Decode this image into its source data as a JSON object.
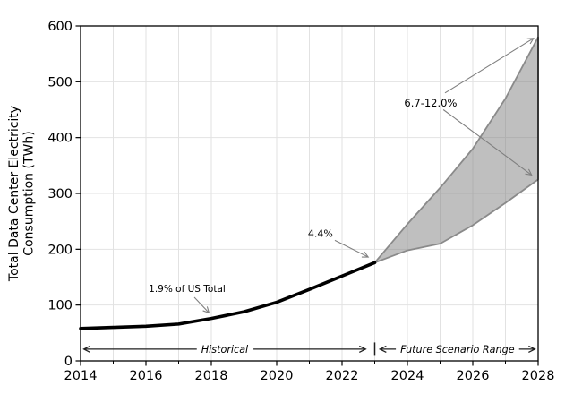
{
  "chart_data": {
    "type": "line",
    "title": "",
    "xlabel": "",
    "ylabel": "Total Data Center Electricity\nConsumption (TWh)",
    "xlim": [
      2014,
      2028
    ],
    "ylim": [
      0,
      600
    ],
    "x_major_ticks": [
      2014,
      2016,
      2018,
      2020,
      2022,
      2024,
      2026,
      2028
    ],
    "x_minor_ticks": [
      2015,
      2017,
      2019,
      2021,
      2023,
      2025,
      2027
    ],
    "y_ticks": [
      0,
      100,
      200,
      300,
      400,
      500,
      600
    ],
    "grid": true,
    "legend": "none",
    "series": [
      {
        "name": "Historical",
        "type": "line",
        "x": [
          2014,
          2015,
          2016,
          2017,
          2018,
          2019,
          2020,
          2021,
          2022,
          2023
        ],
        "y": [
          58,
          60,
          62,
          66,
          76,
          88,
          105,
          128,
          152,
          176
        ]
      },
      {
        "name": "Future Scenario Range",
        "type": "band",
        "x": [
          2023,
          2024,
          2025,
          2026,
          2027,
          2028
        ],
        "lower": [
          176,
          198,
          210,
          243,
          283,
          325
        ],
        "upper": [
          176,
          245,
          310,
          380,
          470,
          580
        ]
      }
    ],
    "annotations": [
      {
        "id": "pct-us-2018",
        "text": "1.9% of US Total",
        "text_x": 2017.26,
        "text_y": 130,
        "arrows": [
          {
            "from": [
              2017.48,
              114
            ],
            "to": [
              2017.93,
              86
            ]
          }
        ]
      },
      {
        "id": "pct-us-2023",
        "text": "4.4%",
        "text_x": 2021.34,
        "text_y": 229,
        "arrows": [
          {
            "from": [
              2021.78,
              216
            ],
            "to": [
              2022.8,
              186
            ]
          }
        ]
      },
      {
        "id": "pct-us-2028",
        "text": "6.7-12.0%",
        "text_x": 2024.71,
        "text_y": 462,
        "arrows": [
          {
            "from": [
              2025.15,
              480
            ],
            "to": [
              2027.86,
              578
            ]
          },
          {
            "from": [
              2025.1,
              450
            ],
            "to": [
              2027.8,
              333
            ]
          }
        ]
      }
    ],
    "span_labels": [
      {
        "label": "Historical",
        "from_x": 2014.1,
        "to_x": 2022.72,
        "y": 21
      },
      {
        "label": "Future Scenario Range",
        "from_x": 2023.16,
        "to_x": 2027.9,
        "y": 21
      }
    ],
    "span_divider_x": 2023,
    "colors": {
      "line": "#000000",
      "band_fill": "#808080",
      "band_opacity": 0.5,
      "band_edge": "#8a8a8a",
      "grid": "#e2e2e2",
      "axis": "#000000",
      "annotation_arrow": "#7f7f7f",
      "span_arrow": "#1f1f1f",
      "text": "#000000",
      "background": "#ffffff"
    }
  }
}
